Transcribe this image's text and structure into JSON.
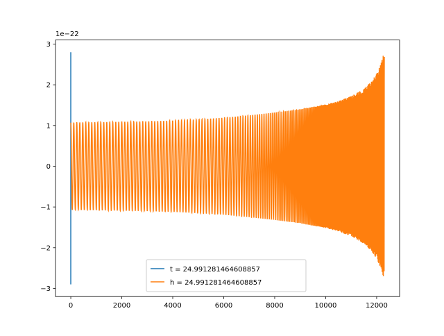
{
  "chart_data": {
    "type": "line",
    "offset_label": "1e−22",
    "xlim": [
      -600,
      12900
    ],
    "ylim": [
      -3.2,
      3.1
    ],
    "y_scale_exponent": -22,
    "x_ticks": [
      0,
      2000,
      4000,
      6000,
      8000,
      10000,
      12000
    ],
    "x_tick_labels": [
      "0",
      "2000",
      "4000",
      "6000",
      "8000",
      "10000",
      "12000"
    ],
    "y_ticks": [
      -3,
      -2,
      -1,
      0,
      1,
      2,
      3
    ],
    "y_tick_labels": [
      "−3",
      "−2",
      "−1",
      "0",
      "1",
      "2",
      "3"
    ],
    "grid": false,
    "legend_position": "bottom-center",
    "series": [
      {
        "name": "t = 24.991281464608857",
        "color": "#1f77b4",
        "description_points": {
          "x": [
            0,
            0,
            0
          ],
          "y": [
            2.8,
            -2.9,
            0.0
          ]
        }
      },
      {
        "name": "h = 24.991281464608857",
        "color": "#ff7f0e",
        "envelope": {
          "x": [
            0,
            1000,
            2000,
            3000,
            4000,
            5000,
            6000,
            7000,
            8000,
            9000,
            10000,
            10500,
            11000,
            11500,
            11800,
            12000,
            12150,
            12250,
            12300
          ],
          "amplitude": [
            1.07,
            1.08,
            1.09,
            1.1,
            1.12,
            1.15,
            1.19,
            1.25,
            1.32,
            1.4,
            1.52,
            1.6,
            1.72,
            1.9,
            2.08,
            2.28,
            2.48,
            2.7,
            2.82
          ]
        },
        "x_range": [
          0,
          12300
        ]
      }
    ]
  }
}
